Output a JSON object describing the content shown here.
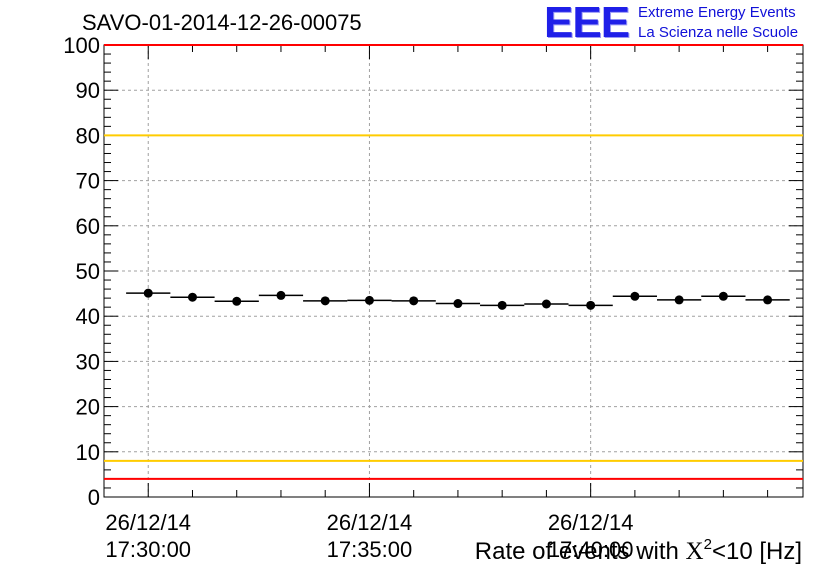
{
  "chart_data": {
    "type": "scatter",
    "title": "SAVO-01-2014-12-26-00075",
    "xlabel": {
      "prefix": "Rate of events with ",
      "chi": "X",
      "sup": "2",
      "suffix": "<10 [Hz]"
    },
    "ylabel": "",
    "ylim": [
      0,
      100
    ],
    "yticks": [
      "0",
      "10",
      "20",
      "30",
      "40",
      "50",
      "60",
      "70",
      "80",
      "90",
      "100"
    ],
    "xlim_minutes": [
      -1,
      14.8
    ],
    "xticks": [
      {
        "minute": 0,
        "date": "26/12/14",
        "time": "17:30:00"
      },
      {
        "minute": 5,
        "date": "26/12/14",
        "time": "17:35:00"
      },
      {
        "minute": 10,
        "date": "26/12/14",
        "time": "17:40:00"
      }
    ],
    "grid": true,
    "points": {
      "x_minutes": [
        0,
        1,
        2,
        3,
        4,
        5,
        6,
        7,
        8,
        9,
        10,
        11,
        12,
        13,
        14
      ],
      "values": [
        45.1,
        44.2,
        43.3,
        44.6,
        43.4,
        43.5,
        43.4,
        42.8,
        42.4,
        42.7,
        42.4,
        44.4,
        43.6,
        44.4,
        43.6
      ],
      "bin_halfwidth_minutes": 0.5
    },
    "reference_lines": [
      {
        "value": 100,
        "color": "#ff0000"
      },
      {
        "value": 80,
        "color": "#ffcc00"
      },
      {
        "value": 8,
        "color": "#ffcc00"
      },
      {
        "value": 4,
        "color": "#ff0000"
      }
    ]
  },
  "logo": {
    "mark": "EEE",
    "line1": "Extreme Energy Events",
    "line2": "La Scienza nelle Scuole"
  }
}
